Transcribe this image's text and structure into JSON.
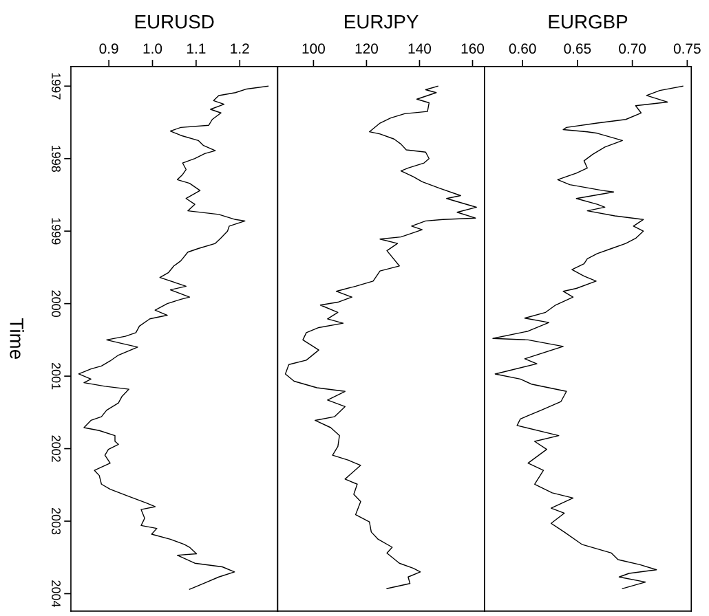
{
  "chart_data": [
    {
      "type": "line",
      "orientation": "horizontal",
      "title": "EURUSD",
      "ylabel": "Time",
      "grid": false,
      "xlim": [
        0.813,
        1.287
      ],
      "xticks": [
        {
          "value": 0.9,
          "label": "0.9"
        },
        {
          "value": 1.0,
          "label": "1.0"
        },
        {
          "value": 1.1,
          "label": "1.1"
        },
        {
          "value": 1.2,
          "label": "1.2"
        }
      ],
      "ylim": [
        2004.24,
        1996.73
      ],
      "yticks": [
        1997,
        1998,
        1999,
        2000,
        2001,
        2002,
        2003,
        2004
      ],
      "x": [
        1997.0,
        1997.04,
        1997.09,
        1997.13,
        1997.2,
        1997.25,
        1997.32,
        1997.37,
        1997.46,
        1997.54,
        1997.57,
        1997.62,
        1997.68,
        1997.75,
        1997.82,
        1997.89,
        1997.93,
        1998.0,
        1998.06,
        1998.15,
        1998.22,
        1998.29,
        1998.34,
        1998.44,
        1998.55,
        1998.63,
        1998.72,
        1998.77,
        1998.84,
        1998.86,
        1998.93,
        1999.0,
        1999.1,
        1999.17,
        1999.24,
        1999.29,
        1999.41,
        1999.48,
        1999.57,
        1999.64,
        1999.72,
        1999.76,
        1999.81,
        1999.91,
        1999.94,
        2000.0,
        2000.09,
        2000.16,
        2000.21,
        2000.31,
        2000.4,
        2000.45,
        2000.5,
        2000.55,
        2000.6,
        2000.71,
        2000.79,
        2000.86,
        2000.9,
        2000.97,
        2001.04,
        2001.09,
        2001.14,
        2001.18,
        2001.28,
        2001.37,
        2001.47,
        2001.56,
        2001.61,
        2001.71,
        2001.75,
        2001.82,
        2001.9,
        2001.94,
        2002.01,
        2002.09,
        2002.2,
        2002.3,
        2002.37,
        2002.49,
        2002.56,
        2002.65,
        2002.75,
        2002.8,
        2002.84,
        2002.96,
        2003.06,
        2003.1,
        2003.18,
        2003.25,
        2003.32,
        2003.36,
        2003.45,
        2003.47,
        2003.58,
        2003.63,
        2003.7,
        2003.77,
        2003.85,
        2003.93,
        2003.94
      ],
      "series": [
        {
          "color": "#000000",
          "values": [
            1.265,
            1.216,
            1.19,
            1.152,
            1.14,
            1.164,
            1.133,
            1.157,
            1.137,
            1.129,
            1.065,
            1.041,
            1.065,
            1.105,
            1.117,
            1.144,
            1.12,
            1.097,
            1.069,
            1.077,
            1.069,
            1.057,
            1.085,
            1.109,
            1.077,
            1.097,
            1.081,
            1.152,
            1.19,
            1.212,
            1.176,
            1.172,
            1.156,
            1.144,
            1.105,
            1.081,
            1.065,
            1.049,
            1.037,
            1.017,
            1.057,
            1.077,
            1.041,
            1.085,
            1.065,
            1.034,
            1.006,
            1.034,
            0.994,
            0.97,
            0.962,
            0.938,
            0.895,
            0.93,
            0.966,
            0.922,
            0.903,
            0.883,
            0.859,
            0.831,
            0.859,
            0.843,
            0.891,
            0.946,
            0.93,
            0.922,
            0.895,
            0.883,
            0.859,
            0.843,
            0.878,
            0.914,
            0.914,
            0.922,
            0.899,
            0.891,
            0.903,
            0.867,
            0.878,
            0.883,
            0.903,
            0.942,
            0.986,
            1.006,
            0.974,
            0.982,
            0.974,
            1.01,
            0.998,
            1.041,
            1.073,
            1.085,
            1.101,
            1.057,
            1.097,
            1.16,
            1.188,
            1.152,
            1.121,
            1.089,
            1.085
          ]
        }
      ]
    },
    {
      "type": "line",
      "orientation": "horizontal",
      "title": "EURJPY",
      "grid": false,
      "tick_labels": "x",
      "xlim": [
        86.5,
        164.5
      ],
      "xticks": [
        100,
        120,
        140,
        160
      ],
      "ylim": [
        2004.24,
        1996.73
      ],
      "x": [
        1997.0,
        1997.05,
        1997.09,
        1997.18,
        1997.23,
        1997.35,
        1997.38,
        1997.44,
        1997.51,
        1997.63,
        1997.66,
        1997.73,
        1997.8,
        1997.88,
        1997.91,
        1998.0,
        1998.06,
        1998.13,
        1998.17,
        1998.25,
        1998.32,
        1998.41,
        1998.51,
        1998.55,
        1998.65,
        1998.67,
        1998.74,
        1998.82,
        1998.84,
        1998.86,
        1998.93,
        1998.98,
        1999.08,
        1999.11,
        1999.17,
        1999.27,
        1999.48,
        1999.55,
        1999.69,
        1999.76,
        1999.83,
        1999.91,
        1999.98,
        2000.02,
        2000.12,
        2000.21,
        2000.27,
        2000.33,
        2000.4,
        2000.5,
        2000.64,
        2000.78,
        2000.84,
        2000.97,
        2001.07,
        2001.16,
        2001.21,
        2001.33,
        2001.42,
        2001.56,
        2001.61,
        2001.71,
        2001.82,
        2001.97,
        2002.09,
        2002.16,
        2002.23,
        2002.42,
        2002.49,
        2002.63,
        2002.73,
        2002.91,
        2003.01,
        2003.15,
        2003.25,
        2003.36,
        2003.44,
        2003.58,
        2003.65,
        2003.7,
        2003.77,
        2003.86,
        2003.93
      ],
      "series": [
        {
          "color": "#000000",
          "values": [
            146.9,
            142.3,
            146.3,
            139.0,
            143.6,
            143.0,
            134.4,
            129.1,
            125.1,
            121.1,
            125.1,
            130.4,
            133.0,
            135.0,
            142.3,
            143.6,
            141.7,
            135.7,
            133.0,
            137.7,
            141.0,
            147.6,
            155.5,
            150.2,
            159.5,
            161.5,
            154.2,
            161.1,
            148.9,
            142.3,
            137.0,
            141.0,
            133.0,
            125.1,
            131.7,
            127.7,
            132.4,
            125.1,
            122.5,
            115.9,
            108.6,
            114.5,
            109.2,
            102.6,
            109.2,
            105.3,
            111.2,
            102.0,
            97.3,
            96.0,
            102.0,
            97.3,
            90.7,
            89.4,
            92.7,
            101.3,
            111.9,
            105.3,
            111.9,
            107.9,
            100.6,
            106.5,
            109.8,
            109.2,
            107.2,
            113.2,
            117.8,
            111.9,
            116.5,
            115.2,
            117.8,
            115.9,
            121.1,
            121.8,
            124.4,
            129.7,
            127.7,
            132.4,
            137.7,
            140.3,
            135.7,
            136.4,
            127.7
          ]
        }
      ]
    },
    {
      "type": "line",
      "orientation": "horizontal",
      "title": "EURGBP",
      "grid": false,
      "tick_labels": "x",
      "xlim": [
        0.5653,
        0.7537
      ],
      "xticks": [
        {
          "value": 0.6,
          "label": "0.60"
        },
        {
          "value": 0.65,
          "label": "0.65"
        },
        {
          "value": 0.7,
          "label": "0.70"
        },
        {
          "value": 0.75,
          "label": "0.75"
        }
      ],
      "ylim": [
        2004.24,
        1996.73
      ],
      "x": [
        1997.0,
        1997.06,
        1997.13,
        1997.22,
        1997.27,
        1997.37,
        1997.46,
        1997.51,
        1997.57,
        1997.6,
        1997.63,
        1997.65,
        1997.75,
        1997.84,
        1997.94,
        1998.03,
        1998.13,
        1998.2,
        1998.29,
        1998.36,
        1998.44,
        1998.46,
        1998.55,
        1998.63,
        1998.67,
        1998.72,
        1998.79,
        1998.84,
        1998.93,
        1999.0,
        1999.1,
        1999.17,
        1999.24,
        1999.31,
        1999.38,
        1999.45,
        1999.53,
        1999.62,
        1999.69,
        1999.79,
        1999.83,
        1999.91,
        2000.02,
        2000.12,
        2000.2,
        2000.26,
        2000.38,
        2000.48,
        2000.5,
        2000.59,
        2000.76,
        2000.83,
        2000.97,
        2001.04,
        2001.11,
        2001.21,
        2001.35,
        2001.47,
        2001.59,
        2001.68,
        2001.82,
        2001.9,
        2002.01,
        2002.2,
        2002.3,
        2002.49,
        2002.61,
        2002.68,
        2002.82,
        2002.89,
        2003.03,
        2003.15,
        2003.32,
        2003.44,
        2003.53,
        2003.6,
        2003.67,
        2003.72,
        2003.77,
        2003.84,
        2003.93
      ],
      "series": [
        {
          "color": "#000000",
          "values": [
            0.746,
            0.725,
            0.713,
            0.732,
            0.703,
            0.708,
            0.694,
            0.668,
            0.64,
            0.637,
            0.659,
            0.668,
            0.691,
            0.675,
            0.664,
            0.656,
            0.659,
            0.649,
            0.632,
            0.643,
            0.673,
            0.683,
            0.649,
            0.668,
            0.675,
            0.659,
            0.684,
            0.71,
            0.701,
            0.71,
            0.703,
            0.694,
            0.681,
            0.668,
            0.659,
            0.656,
            0.645,
            0.656,
            0.667,
            0.649,
            0.637,
            0.646,
            0.63,
            0.621,
            0.602,
            0.624,
            0.605,
            0.573,
            0.605,
            0.637,
            0.602,
            0.613,
            0.575,
            0.598,
            0.608,
            0.64,
            0.635,
            0.617,
            0.598,
            0.595,
            0.633,
            0.611,
            0.622,
            0.605,
            0.619,
            0.611,
            0.627,
            0.646,
            0.626,
            0.638,
            0.626,
            0.638,
            0.654,
            0.681,
            0.687,
            0.707,
            0.722,
            0.697,
            0.688,
            0.712,
            0.691
          ]
        }
      ]
    }
  ]
}
